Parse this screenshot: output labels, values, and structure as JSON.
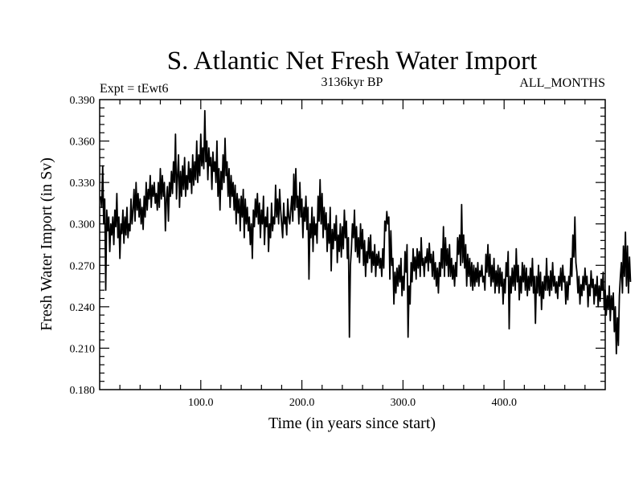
{
  "chart_data": {
    "type": "line",
    "title": "S. Atlantic Net Fresh Water Import",
    "left_caption": "Expt = tEwt6",
    "center_caption": "3136kyr BP",
    "right_caption": "ALL_MONTHS",
    "xlabel": "Time (in years since start)",
    "ylabel": "Fresh Water Import (in Sv)",
    "xlim": [
      0,
      500
    ],
    "ylim": [
      0.18,
      0.39
    ],
    "x_ticks": [
      100,
      200,
      300,
      400
    ],
    "x_tick_labels": [
      "100.0",
      "200.0",
      "300.0",
      "400.0"
    ],
    "y_ticks": [
      0.18,
      0.21,
      0.24,
      0.27,
      0.3,
      0.33,
      0.36,
      0.39
    ],
    "y_tick_labels": [
      "0.180",
      "0.210",
      "0.240",
      "0.270",
      "0.300",
      "0.330",
      "0.360",
      "0.390"
    ],
    "series": [
      {
        "name": "S. Atlantic Net Fresh Water Import",
        "x_start": 1,
        "x_step": 1,
        "values": [
          0.32,
          0.312,
          0.342,
          0.3,
          0.318,
          0.252,
          0.31,
          0.295,
          0.305,
          0.28,
          0.3,
          0.292,
          0.305,
          0.285,
          0.31,
          0.298,
          0.322,
          0.29,
          0.305,
          0.275,
          0.3,
          0.293,
          0.31,
          0.286,
          0.305,
          0.292,
          0.312,
          0.29,
          0.3,
          0.295,
          0.318,
          0.3,
          0.31,
          0.325,
          0.302,
          0.33,
          0.31,
          0.322,
          0.305,
          0.318,
          0.3,
          0.312,
          0.296,
          0.32,
          0.305,
          0.33,
          0.31,
          0.325,
          0.318,
          0.335,
          0.312,
          0.328,
          0.32,
          0.33,
          0.315,
          0.322,
          0.31,
          0.33,
          0.312,
          0.34,
          0.318,
          0.335,
          0.32,
          0.33,
          0.295,
          0.318,
          0.327,
          0.302,
          0.33,
          0.32,
          0.338,
          0.322,
          0.345,
          0.33,
          0.365,
          0.318,
          0.335,
          0.35,
          0.312,
          0.338,
          0.32,
          0.342,
          0.325,
          0.348,
          0.32,
          0.335,
          0.325,
          0.345,
          0.33,
          0.34,
          0.322,
          0.35,
          0.328,
          0.345,
          0.332,
          0.36,
          0.33,
          0.35,
          0.335,
          0.365,
          0.342,
          0.355,
          0.34,
          0.382,
          0.345,
          0.36,
          0.332,
          0.355,
          0.342,
          0.348,
          0.325,
          0.352,
          0.338,
          0.345,
          0.33,
          0.36,
          0.32,
          0.34,
          0.31,
          0.338,
          0.325,
          0.35,
          0.33,
          0.362,
          0.335,
          0.345,
          0.32,
          0.34,
          0.312,
          0.335,
          0.32,
          0.33,
          0.31,
          0.328,
          0.3,
          0.322,
          0.308,
          0.318,
          0.295,
          0.32,
          0.305,
          0.325,
          0.29,
          0.318,
          0.3,
          0.312,
          0.295,
          0.305,
          0.285,
          0.3,
          0.275,
          0.31,
          0.298,
          0.318,
          0.305,
          0.322,
          0.3,
          0.315,
          0.29,
          0.31,
          0.3,
          0.32,
          0.285,
          0.305,
          0.298,
          0.312,
          0.28,
          0.3,
          0.29,
          0.315,
          0.295,
          0.305,
          0.3,
          0.328,
          0.305,
          0.318,
          0.3,
          0.325,
          0.31,
          0.3,
          0.29,
          0.315,
          0.3,
          0.305,
          0.292,
          0.318,
          0.305,
          0.3,
          0.31,
          0.32,
          0.302,
          0.336,
          0.31,
          0.34,
          0.312,
          0.32,
          0.3,
          0.33,
          0.305,
          0.318,
          0.29,
          0.312,
          0.302,
          0.32,
          0.296,
          0.312,
          0.26,
          0.3,
          0.29,
          0.312,
          0.28,
          0.305,
          0.292,
          0.3,
          0.286,
          0.32,
          0.302,
          0.332,
          0.3,
          0.322,
          0.29,
          0.312,
          0.296,
          0.308,
          0.28,
          0.3,
          0.286,
          0.312,
          0.266,
          0.296,
          0.282,
          0.3,
          0.288,
          0.306,
          0.272,
          0.292,
          0.28,
          0.3,
          0.276,
          0.298,
          0.282,
          0.31,
          0.29,
          0.302,
          0.275,
          0.29,
          0.218,
          0.27,
          0.282,
          0.3,
          0.29,
          0.31,
          0.28,
          0.298,
          0.276,
          0.29,
          0.272,
          0.3,
          0.282,
          0.296,
          0.27,
          0.288,
          0.262,
          0.28,
          0.272,
          0.29,
          0.275,
          0.292,
          0.265,
          0.28,
          0.27,
          0.285,
          0.262,
          0.278,
          0.27,
          0.28,
          0.268,
          0.275,
          0.262,
          0.282,
          0.268,
          0.302,
          0.295,
          0.309,
          0.3,
          0.305,
          0.26,
          0.295,
          0.27,
          0.275,
          0.242,
          0.265,
          0.25,
          0.268,
          0.255,
          0.27,
          0.258,
          0.275,
          0.248,
          0.262,
          0.252,
          0.28,
          0.265,
          0.285,
          0.218,
          0.255,
          0.242,
          0.272,
          0.258,
          0.282,
          0.266,
          0.276,
          0.26,
          0.282,
          0.268,
          0.28,
          0.262,
          0.29,
          0.27,
          0.275,
          0.262,
          0.276,
          0.272,
          0.282,
          0.266,
          0.286,
          0.272,
          0.278,
          0.262,
          0.28,
          0.26,
          0.272,
          0.255,
          0.268,
          0.25,
          0.272,
          0.262,
          0.282,
          0.268,
          0.298,
          0.262,
          0.29,
          0.27,
          0.282,
          0.262,
          0.285,
          0.262,
          0.275,
          0.26,
          0.27,
          0.255,
          0.272,
          0.262,
          0.29,
          0.278,
          0.292,
          0.27,
          0.314,
          0.272,
          0.292,
          0.268,
          0.285,
          0.255,
          0.278,
          0.262,
          0.275,
          0.255,
          0.272,
          0.252,
          0.27,
          0.255,
          0.268,
          0.258,
          0.272,
          0.255,
          0.266,
          0.262,
          0.27,
          0.258,
          0.262,
          0.252,
          0.278,
          0.265,
          0.285,
          0.262,
          0.278,
          0.255,
          0.27,
          0.258,
          0.275,
          0.25,
          0.266,
          0.255,
          0.27,
          0.25,
          0.268,
          0.255,
          0.265,
          0.242,
          0.26,
          0.25,
          0.272,
          0.262,
          0.28,
          0.224,
          0.262,
          0.25,
          0.268,
          0.255,
          0.27,
          0.252,
          0.282,
          0.258,
          0.27,
          0.245,
          0.262,
          0.25,
          0.272,
          0.258,
          0.27,
          0.252,
          0.268,
          0.248,
          0.262,
          0.252,
          0.268,
          0.255,
          0.275,
          0.25,
          0.262,
          0.228,
          0.262,
          0.25,
          0.27,
          0.248,
          0.265,
          0.238,
          0.258,
          0.246,
          0.262,
          0.252,
          0.275,
          0.252,
          0.262,
          0.248,
          0.266,
          0.252,
          0.272,
          0.255,
          0.262,
          0.25,
          0.258,
          0.246,
          0.262,
          0.255,
          0.268,
          0.252,
          0.27,
          0.258,
          0.262,
          0.242,
          0.258,
          0.245,
          0.262,
          0.256,
          0.275,
          0.262,
          0.292,
          0.276,
          0.305,
          0.272,
          0.265,
          0.25,
          0.262,
          0.242,
          0.256,
          0.248,
          0.262,
          0.252,
          0.268,
          0.256,
          0.262,
          0.24,
          0.256,
          0.248,
          0.266,
          0.254,
          0.26,
          0.242,
          0.256,
          0.248,
          0.262,
          0.24,
          0.255,
          0.244,
          0.26,
          0.252,
          0.265,
          0.238,
          0.252,
          0.234,
          0.248,
          0.238,
          0.255,
          0.23,
          0.248,
          0.238,
          0.25,
          0.222,
          0.24,
          0.206,
          0.232,
          0.212,
          0.248,
          0.262,
          0.272,
          0.25,
          0.284,
          0.262,
          0.294,
          0.255,
          0.284,
          0.25,
          0.276,
          0.258
        ]
      }
    ]
  }
}
